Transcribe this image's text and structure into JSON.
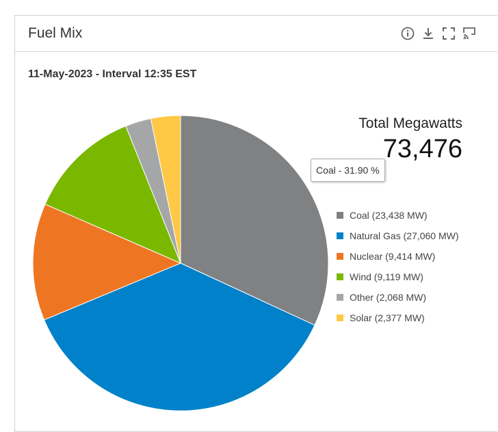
{
  "widget": {
    "title": "Fuel Mix",
    "icons": [
      "info-icon",
      "download-icon",
      "fullscreen-icon",
      "cast-icon"
    ]
  },
  "subtitle": "11-May-2023 - Interval 12:35 EST",
  "total": {
    "label": "Total Megawatts",
    "value": "73,476"
  },
  "tooltip": "Coal - 31.90 %",
  "legend": [
    {
      "label": "Coal (23,438 MW)",
      "color": "#808183"
    },
    {
      "label": "Natural Gas (27,060 MW)",
      "color": "#0081c9"
    },
    {
      "label": "Nuclear (9,414 MW)",
      "color": "#ee7623"
    },
    {
      "label": "Wind (9,119 MW)",
      "color": "#7ab800"
    },
    {
      "label": "Other (2,068 MW)",
      "color": "#a5a6a8"
    },
    {
      "label": "Solar (2,377 MW)",
      "color": "#ffc845"
    }
  ],
  "chart_data": {
    "type": "pie",
    "title": "Fuel Mix",
    "subtitle": "11-May-2023 - Interval 12:35 EST",
    "unit": "MW",
    "total": 73476,
    "categories": [
      "Coal",
      "Natural Gas",
      "Nuclear",
      "Wind",
      "Other",
      "Solar"
    ],
    "values": [
      23438,
      27060,
      9414,
      9119,
      2068,
      2377
    ],
    "colors": [
      "#808183",
      "#0081c9",
      "#ee7623",
      "#7ab800",
      "#a5a6a8",
      "#ffc845"
    ],
    "highlighted": {
      "category": "Coal",
      "percent": 31.9
    },
    "legend": "right"
  }
}
